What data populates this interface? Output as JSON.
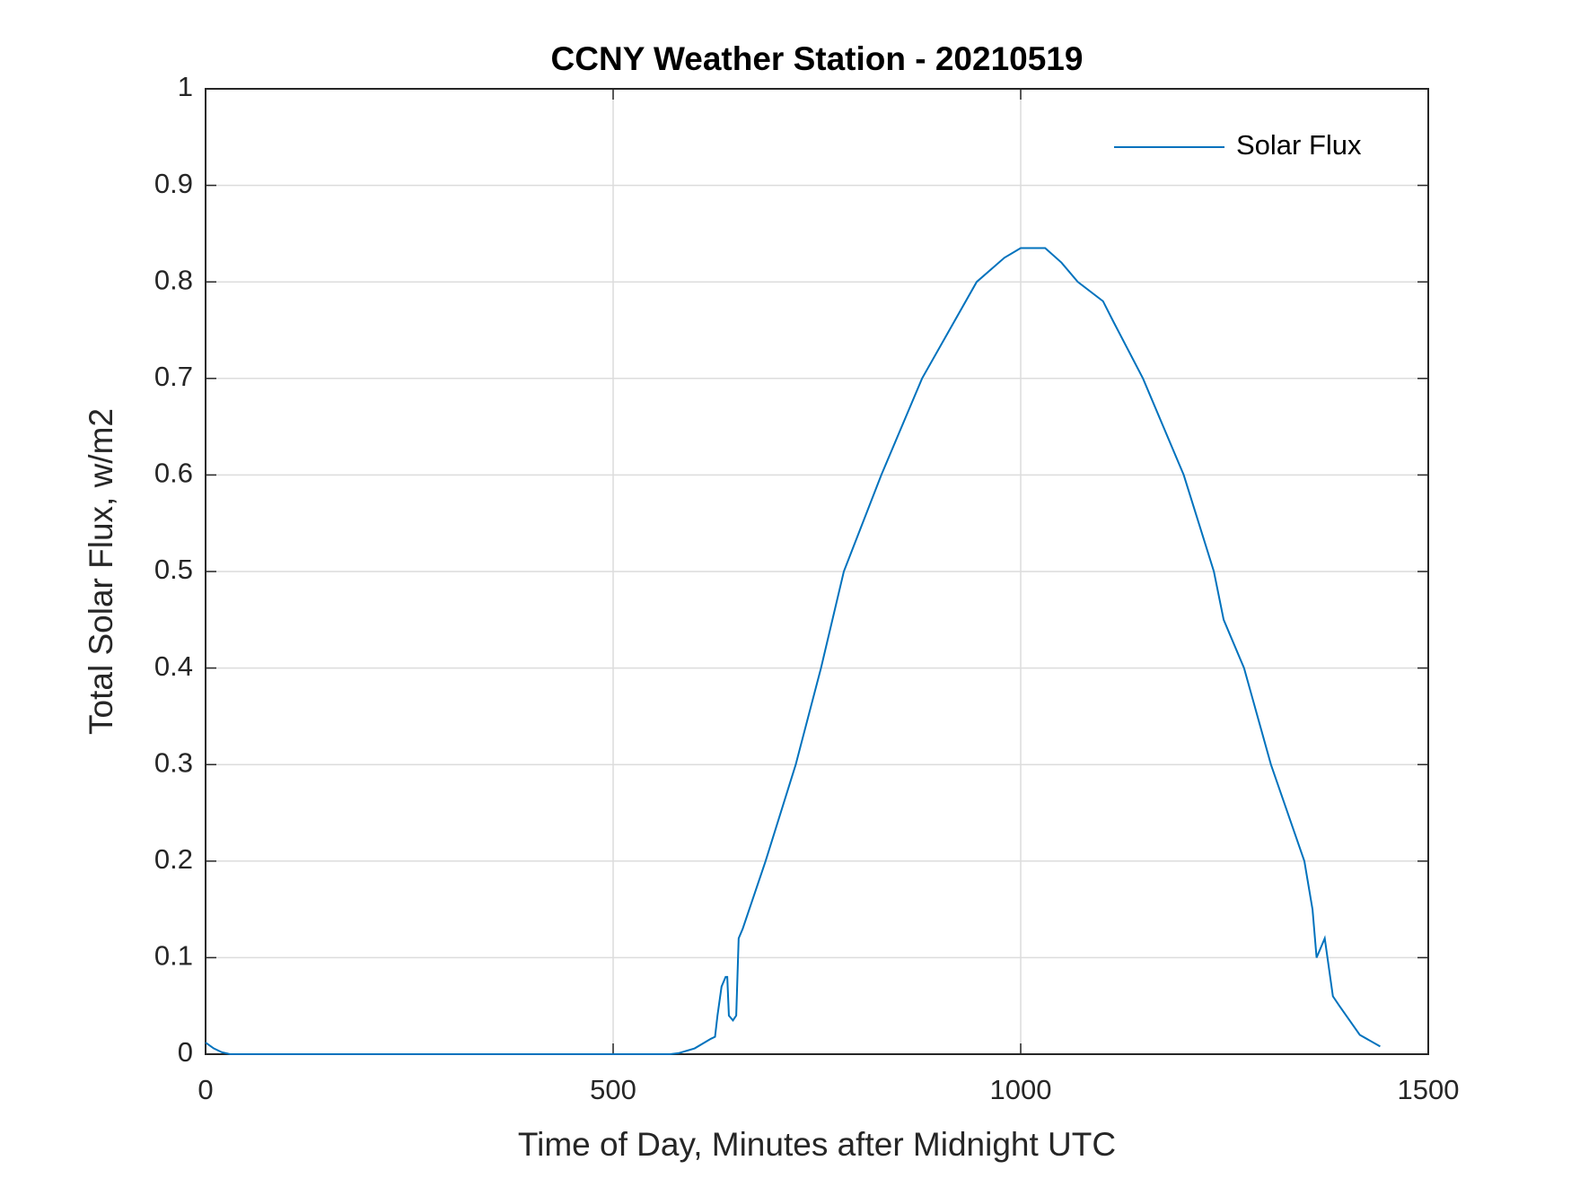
{
  "chart_data": {
    "type": "line",
    "title": "CCNY Weather Station - 20210519",
    "xlabel": "Time of Day, Minutes after Midnight UTC",
    "ylabel": "Total Solar Flux, w/m2",
    "x": [
      0,
      10,
      20,
      30,
      100,
      200,
      300,
      400,
      500,
      570,
      580,
      600,
      620,
      625,
      628,
      633,
      638,
      640,
      642,
      647,
      651,
      654,
      659,
      687,
      724,
      755,
      783,
      829,
      879,
      946,
      980,
      1000,
      1030,
      1050,
      1070,
      1101,
      1113,
      1150,
      1200,
      1237,
      1249,
      1274,
      1307,
      1348,
      1358,
      1363,
      1373,
      1383,
      1391,
      1416,
      1441
    ],
    "series": [
      {
        "name": "Solar Flux",
        "color": "#0072bd",
        "values": [
          0.012,
          0.006,
          0.002,
          0,
          0,
          0,
          0,
          0,
          0,
          0,
          0.001,
          0.006,
          0.016,
          0.018,
          0.04,
          0.07,
          0.08,
          0.08,
          0.04,
          0.035,
          0.04,
          0.12,
          0.13,
          0.2,
          0.3,
          0.4,
          0.5,
          0.6,
          0.7,
          0.8,
          0.825,
          0.835,
          0.835,
          0.82,
          0.8,
          0.78,
          0.76,
          0.7,
          0.6,
          0.5,
          0.45,
          0.4,
          0.3,
          0.2,
          0.15,
          0.1,
          0.12,
          0.06,
          0.05,
          0.02,
          0.008
        ]
      }
    ],
    "xlim": [
      0,
      1500
    ],
    "xticks": [
      0,
      500,
      1000,
      1500
    ],
    "ylim": [
      0,
      1
    ],
    "yticks": [
      0,
      0.1,
      0.2,
      0.3,
      0.4,
      0.5,
      0.6,
      0.7,
      0.8,
      0.9,
      1
    ],
    "grid": true,
    "legend": "northeast"
  }
}
